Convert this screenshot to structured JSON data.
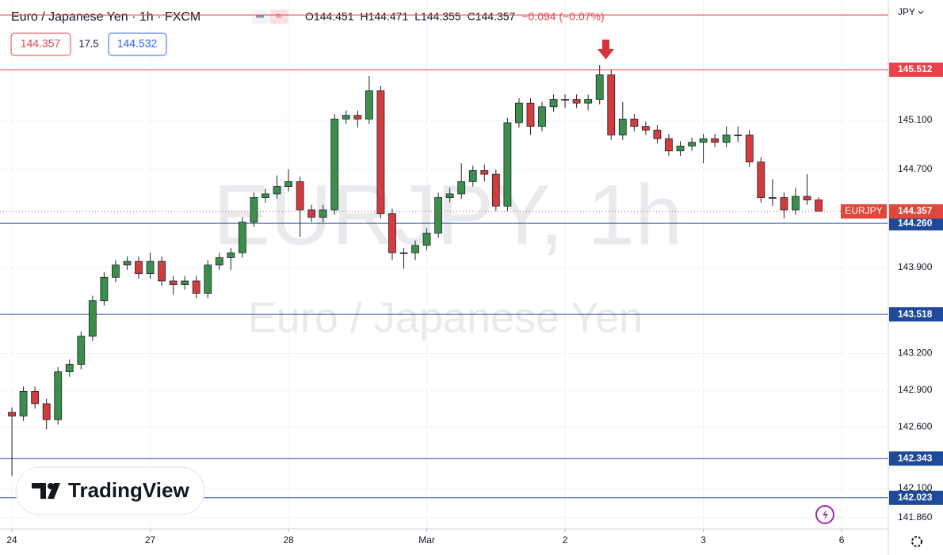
{
  "chart_data": {
    "type": "candlestick",
    "title": "Euro / Japanese Yen · 1h · FXCM",
    "ohlc_text": [
      "O144.451",
      "H144.471",
      "L144.355",
      "C144.357",
      "−0.094 (−0.07%)"
    ],
    "quote_boxes": [
      "144.357",
      "17.5",
      "144.532"
    ],
    "currency": "JPY",
    "watermark": [
      "EURJPY, 1h",
      "Euro / Japanese Yen"
    ],
    "logo": "TradingView",
    "up_color": "#3b8f4a",
    "down_color": "#d23c3c",
    "grid": true,
    "xlim": [
      -2.07,
      152.1
    ],
    "ylim": [
      141.77,
      146.08
    ],
    "xticks": [
      {
        "value": 0,
        "label": "24"
      },
      {
        "value": 24,
        "label": "27"
      },
      {
        "value": 48,
        "label": "28"
      },
      {
        "value": 72,
        "label": "Mar"
      },
      {
        "value": 96,
        "label": "2"
      },
      {
        "value": 120,
        "label": "3"
      },
      {
        "value": 144,
        "label": "6"
      }
    ],
    "yticks": [
      {
        "value": 141.86,
        "label": "141.860"
      },
      {
        "value": 142.1,
        "label": "142.100"
      },
      {
        "value": 142.6,
        "label": "142.600"
      },
      {
        "value": 142.9,
        "label": "142.900"
      },
      {
        "value": 143.2,
        "label": "143.200"
      },
      {
        "value": 143.9,
        "label": "143.900"
      },
      {
        "value": 144.7,
        "label": "144.700"
      },
      {
        "value": 145.1,
        "label": "145.100"
      }
    ],
    "levels": [
      {
        "value": 145.512,
        "label": "145.512",
        "color": "#e8434a"
      },
      {
        "value": 144.26,
        "label": "144.260",
        "color": "#1f4a99"
      },
      {
        "value": 143.518,
        "label": "143.518",
        "color": "#1f4a99"
      },
      {
        "value": 142.343,
        "label": "142.343",
        "color": "#1f4a99"
      },
      {
        "value": 142.023,
        "label": "142.023",
        "color": "#1f4a99"
      }
    ],
    "last_price": {
      "value": 144.357,
      "label": "144.357",
      "name": "EURJPY",
      "color": "#e0473d"
    },
    "x": [
      0,
      2,
      4,
      6,
      8,
      10,
      12,
      14,
      16,
      18,
      20,
      22,
      24,
      26,
      28,
      30,
      32,
      34,
      36,
      38,
      40,
      42,
      44,
      46,
      48,
      50,
      52,
      54,
      56,
      58,
      60,
      62,
      64,
      66,
      68,
      70,
      72,
      74,
      76,
      78,
      80,
      82,
      84,
      86,
      88,
      90,
      92,
      94,
      96,
      98,
      100,
      102,
      104,
      106,
      108,
      110,
      112,
      114,
      116,
      118,
      120,
      122,
      124,
      126,
      128,
      130,
      132,
      134,
      136,
      138,
      140
    ],
    "open": [
      142.72,
      142.69,
      142.89,
      142.79,
      142.66,
      143.05,
      143.11,
      143.34,
      143.63,
      143.82,
      143.92,
      143.95,
      143.85,
      143.95,
      143.79,
      143.76,
      143.79,
      143.69,
      143.92,
      143.98,
      144.02,
      144.27,
      144.47,
      144.5,
      144.56,
      144.6,
      144.37,
      144.31,
      144.37,
      145.11,
      145.14,
      145.11,
      145.34,
      144.34,
      144.02,
      144.02,
      144.08,
      144.18,
      144.47,
      144.5,
      144.6,
      144.69,
      144.66,
      144.4,
      145.08,
      145.24,
      145.05,
      145.21,
      145.27,
      145.27,
      145.24,
      145.27,
      145.47,
      144.98,
      145.11,
      145.05,
      145.02,
      144.95,
      144.85,
      144.89,
      144.92,
      144.95,
      144.92,
      144.98,
      144.98,
      144.76,
      144.47,
      144.47,
      144.37,
      144.48,
      144.451
    ],
    "high": [
      142.76,
      142.93,
      142.93,
      142.83,
      143.09,
      143.15,
      143.38,
      143.67,
      143.86,
      143.96,
      143.99,
      143.99,
      144.02,
      143.99,
      143.83,
      143.83,
      143.83,
      143.96,
      144.02,
      144.06,
      144.31,
      144.51,
      144.54,
      144.65,
      144.7,
      144.64,
      144.41,
      144.41,
      145.15,
      145.18,
      145.18,
      145.46,
      145.38,
      144.38,
      144.06,
      144.12,
      144.22,
      144.51,
      144.55,
      144.75,
      144.73,
      144.74,
      144.7,
      145.12,
      145.28,
      145.28,
      145.25,
      145.31,
      145.31,
      145.31,
      145.31,
      145.55,
      145.51,
      145.25,
      145.15,
      145.09,
      145.06,
      144.99,
      144.93,
      144.96,
      144.99,
      144.99,
      145.05,
      145.05,
      145.02,
      144.8,
      144.62,
      144.51,
      144.55,
      144.66,
      144.471
    ],
    "low": [
      142.2,
      142.65,
      142.75,
      142.58,
      142.62,
      143.01,
      143.07,
      143.3,
      143.59,
      143.78,
      143.88,
      143.81,
      143.81,
      143.75,
      143.68,
      143.72,
      143.65,
      143.65,
      143.88,
      143.88,
      143.98,
      144.23,
      144.43,
      144.46,
      144.52,
      144.15,
      144.27,
      144.27,
      144.33,
      145.07,
      145.04,
      145.07,
      144.3,
      143.96,
      143.89,
      143.96,
      144.04,
      144.14,
      144.43,
      144.46,
      144.56,
      144.6,
      144.36,
      144.36,
      145.04,
      144.98,
      145.01,
      145.17,
      145.2,
      145.2,
      145.18,
      145.23,
      144.94,
      144.94,
      145.01,
      144.98,
      144.91,
      144.81,
      144.81,
      144.85,
      144.75,
      144.88,
      144.88,
      144.92,
      144.72,
      144.43,
      144.4,
      144.3,
      144.33,
      144.41,
      144.355
    ],
    "close": [
      142.69,
      142.89,
      142.79,
      142.66,
      143.05,
      143.11,
      143.34,
      143.63,
      143.82,
      143.92,
      143.95,
      143.85,
      143.95,
      143.79,
      143.76,
      143.79,
      143.69,
      143.92,
      143.98,
      144.02,
      144.27,
      144.47,
      144.5,
      144.56,
      144.6,
      144.37,
      144.31,
      144.37,
      145.11,
      145.14,
      145.11,
      145.34,
      144.34,
      144.02,
      144.02,
      144.08,
      144.18,
      144.47,
      144.5,
      144.6,
      144.69,
      144.66,
      144.4,
      145.08,
      145.24,
      145.05,
      145.21,
      145.27,
      145.27,
      145.24,
      145.27,
      145.47,
      144.98,
      145.11,
      145.05,
      145.02,
      144.95,
      144.85,
      144.89,
      144.92,
      144.95,
      144.92,
      144.98,
      144.98,
      144.76,
      144.47,
      144.47,
      144.37,
      144.48,
      144.45,
      144.357
    ]
  }
}
